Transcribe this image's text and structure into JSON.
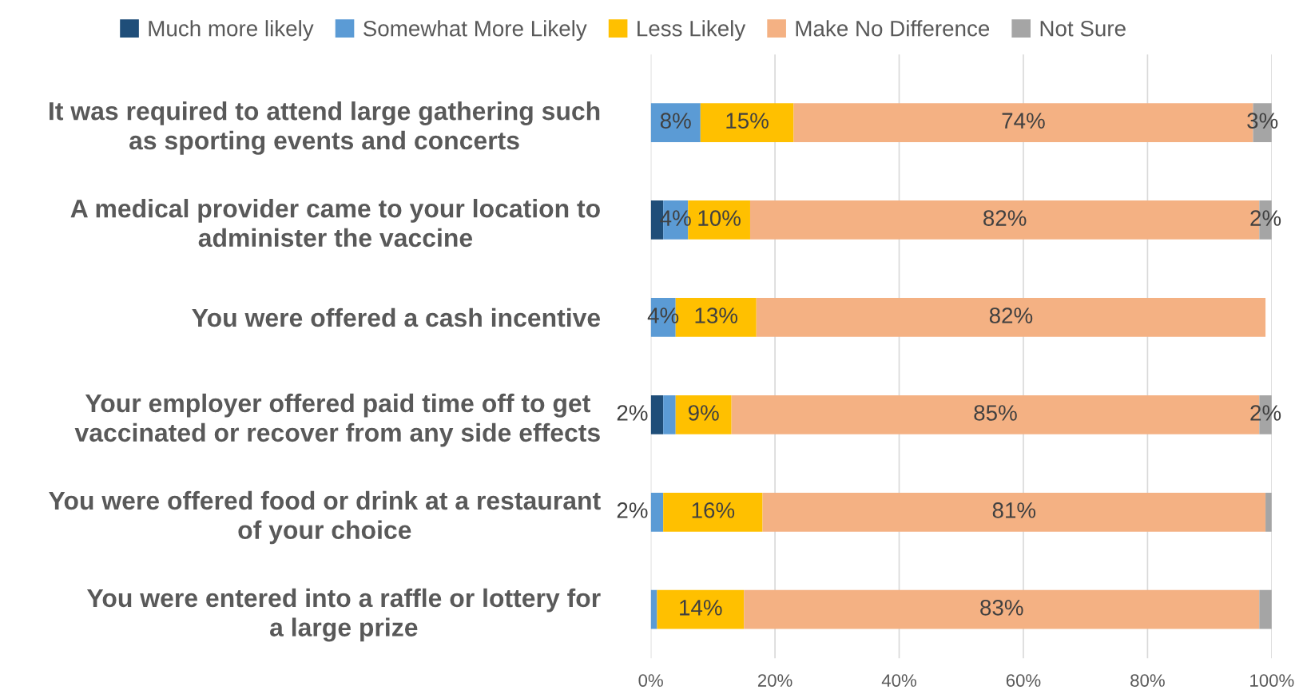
{
  "chart_data": {
    "type": "bar",
    "orientation": "horizontal",
    "stacked": true,
    "categories": [
      "It was required to attend large gathering such as sporting events and concerts",
      "A medical provider came to your location to administer the vaccine",
      "You were offered a cash incentive",
      "Your employer offered paid time off to get vaccinated or recover from any side effects",
      "You were offered food or drink at a restaurant of your choice",
      "You were entered into a raffle or lottery for a large prize"
    ],
    "series": [
      {
        "name": "Much more likely",
        "color": "#1f4e79",
        "values": [
          0,
          2,
          0,
          2,
          0,
          0
        ],
        "value_labels": [
          null,
          null,
          null,
          null,
          null,
          null
        ]
      },
      {
        "name": "Somewhat More Likely",
        "color": "#5b9bd5",
        "values": [
          8,
          4,
          4,
          2,
          2,
          1
        ],
        "value_labels": [
          "8%",
          "4%",
          "4%",
          "2%",
          "2%",
          null
        ]
      },
      {
        "name": "Less Likely",
        "color": "#ffc000",
        "values": [
          15,
          10,
          13,
          9,
          16,
          14
        ],
        "value_labels": [
          "15%",
          "10%",
          "13%",
          "9%",
          "16%",
          "14%"
        ]
      },
      {
        "name": "Make No Difference",
        "color": "#f4b183",
        "values": [
          74,
          82,
          82,
          85,
          81,
          83
        ],
        "value_labels": [
          "74%",
          "82%",
          "82%",
          "85%",
          "81%",
          "83%"
        ]
      },
      {
        "name": "Not Sure",
        "color": "#a5a5a5",
        "values": [
          3,
          2,
          0,
          2,
          1,
          2
        ],
        "value_labels": [
          "3%",
          "2%",
          null,
          "2%",
          null,
          null
        ]
      }
    ],
    "xlim": [
      0,
      100
    ],
    "xticks": [
      {
        "value": 0,
        "label": "0%"
      },
      {
        "value": 20,
        "label": "20%"
      },
      {
        "value": 40,
        "label": "40%"
      },
      {
        "value": 60,
        "label": "60%"
      },
      {
        "value": 80,
        "label": "80%"
      },
      {
        "value": 100,
        "label": "100%"
      }
    ],
    "grid": "x",
    "legend": "top"
  }
}
